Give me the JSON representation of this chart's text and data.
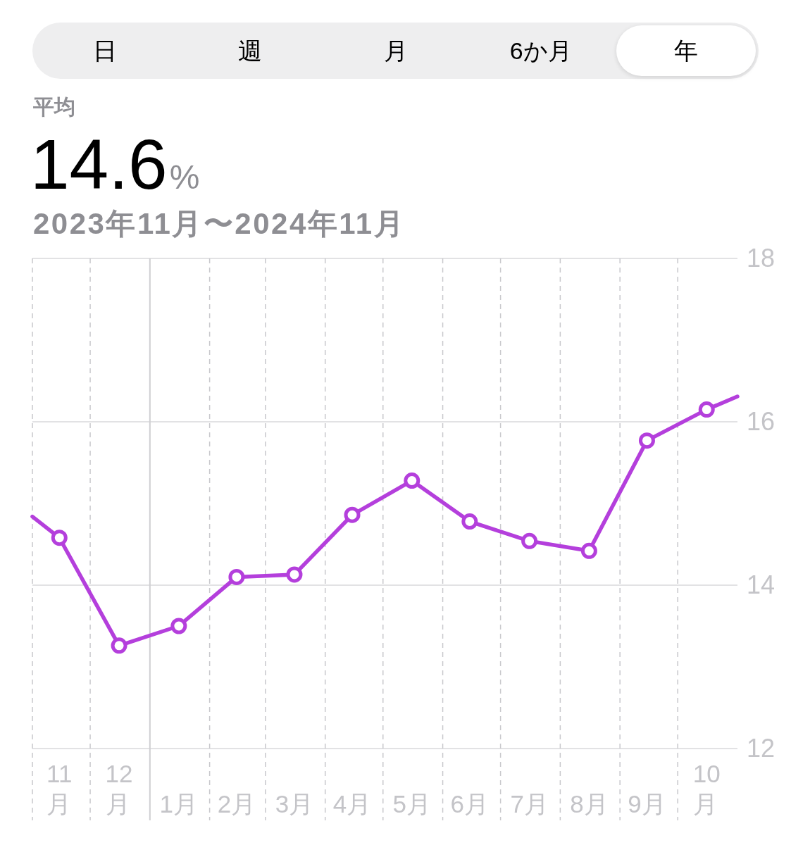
{
  "chart_data": {
    "type": "line",
    "title": "14.6%",
    "subtitle": "2023年11月〜2024年11月",
    "annotations": [
      "日",
      "週",
      "月",
      "6か月",
      "年",
      "平均"
    ],
    "xlim": [
      "2023-11-01",
      "2024-11-01"
    ],
    "xticks": [
      {
        "value": "2023-11-15",
        "label": "11月"
      },
      {
        "value": "2023-12-16",
        "label": "12月"
      },
      {
        "value": "2024-01-16",
        "label": "1月"
      },
      {
        "value": "2024-02-15",
        "label": "2月"
      },
      {
        "value": "2024-03-16",
        "label": "3月"
      },
      {
        "value": "2024-04-15",
        "label": "4月"
      },
      {
        "value": "2024-05-16",
        "label": "5月"
      },
      {
        "value": "2024-06-15",
        "label": "6月"
      },
      {
        "value": "2024-07-16",
        "label": "7月"
      },
      {
        "value": "2024-08-16",
        "label": "8月"
      },
      {
        "value": "2024-09-15",
        "label": "9月"
      },
      {
        "value": "2024-10-16",
        "label": "10月"
      }
    ],
    "ylim": [
      12,
      18
    ],
    "yticks": [
      12,
      14,
      16,
      18
    ],
    "grid": "y",
    "marker": "circle",
    "line_style": "solid",
    "ref_lines": [
      {
        "axis": "x",
        "value": "2023-11-01",
        "line_style": "dashed",
        "color": "#c8c8cc"
      },
      {
        "axis": "x",
        "value": "2023-12-01",
        "line_style": "dashed",
        "color": "#c8c8cc"
      },
      {
        "axis": "x",
        "value": "2024-01-01",
        "line_style": "solid",
        "color": "#cfcfd2"
      },
      {
        "axis": "x",
        "value": "2024-02-01",
        "line_style": "dashed",
        "color": "#c8c8cc"
      },
      {
        "axis": "x",
        "value": "2024-03-01",
        "line_style": "dashed",
        "color": "#c8c8cc"
      },
      {
        "axis": "x",
        "value": "2024-04-01",
        "line_style": "dashed",
        "color": "#c8c8cc"
      },
      {
        "axis": "x",
        "value": "2024-05-01",
        "line_style": "dashed",
        "color": "#c8c8cc"
      },
      {
        "axis": "x",
        "value": "2024-06-01",
        "line_style": "dashed",
        "color": "#c8c8cc"
      },
      {
        "axis": "x",
        "value": "2024-07-01",
        "line_style": "dashed",
        "color": "#c8c8cc"
      },
      {
        "axis": "x",
        "value": "2024-08-01",
        "line_style": "dashed",
        "color": "#c8c8cc"
      },
      {
        "axis": "x",
        "value": "2024-09-01",
        "line_style": "dashed",
        "color": "#c8c8cc"
      },
      {
        "axis": "x",
        "value": "2024-10-01",
        "line_style": "dashed",
        "color": "#c8c8cc"
      }
    ],
    "series": [
      {
        "marker": "none",
        "color": "#b43fdc",
        "x": [
          "2023-11-01",
          "2023-11-15",
          "2023-12-16",
          "2024-01-16",
          "2024-02-15",
          "2024-03-16",
          "2024-04-15",
          "2024-05-16",
          "2024-06-15",
          "2024-07-16",
          "2024-08-16",
          "2024-09-15",
          "2024-10-16",
          "2024-11-01"
        ],
        "values": [
          14.84,
          14.58,
          13.26,
          13.5,
          14.1,
          14.13,
          14.86,
          15.28,
          14.78,
          14.54,
          14.42,
          15.77,
          16.15,
          16.31
        ]
      },
      {
        "type": "scatter",
        "color": "#b43fdc",
        "x": [
          "2023-11-15",
          "2023-12-16",
          "2024-01-16",
          "2024-02-15",
          "2024-03-16",
          "2024-04-15",
          "2024-05-16",
          "2024-06-15",
          "2024-07-16",
          "2024-08-16",
          "2024-09-15",
          "2024-10-16"
        ],
        "values": [
          14.58,
          13.26,
          13.5,
          14.1,
          14.13,
          14.86,
          15.28,
          14.78,
          14.54,
          14.42,
          15.77,
          16.15
        ]
      }
    ]
  }
}
